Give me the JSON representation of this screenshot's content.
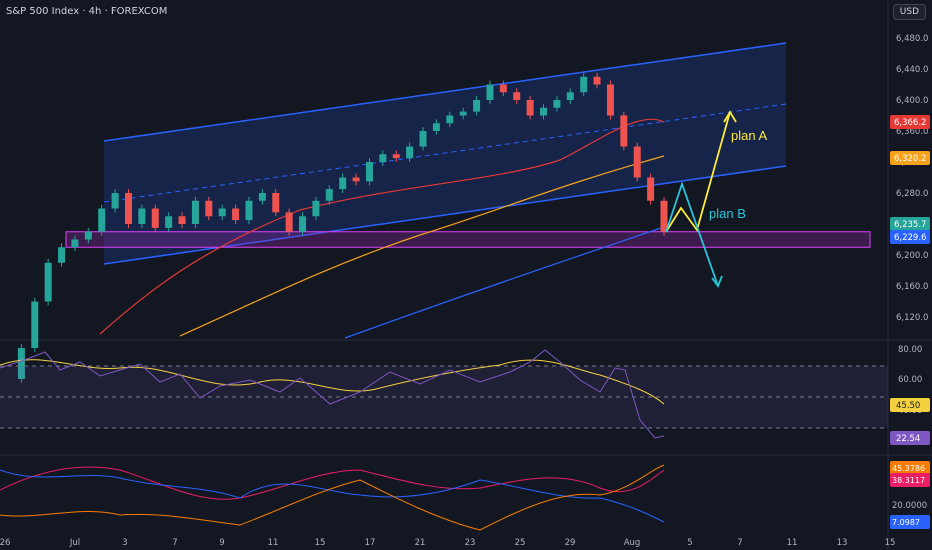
{
  "header": {
    "title": "S&P 500 Index · 4h · FOREXCOM",
    "currency_button": "USD"
  },
  "colors": {
    "background": "#131722",
    "up": "#26a69a",
    "down": "#ef5350",
    "channel": "#2962ff",
    "ma_red": "#e53935",
    "ma_orange": "#f7a21b",
    "ma_blue": "#2962ff",
    "plan_a": "#ffeb3b",
    "plan_b": "#26c6da",
    "rsi": "#7e57c2",
    "rsi_ma": "#f4d03f"
  },
  "chart_data": [
    {
      "type": "candlestick",
      "title": "S&P 500 Index · 4h · FOREXCOM",
      "y_axis_ticks": [
        6120,
        6160,
        6200,
        6240,
        6280,
        6320,
        6360,
        6400,
        6440,
        6480
      ],
      "y_axis_tick_labels": [
        "6,120.0",
        "6,160.0",
        "6,200.0",
        "6,240.0",
        "6,280.0",
        "6,320.0",
        "6,360.0",
        "6,400.0",
        "6,440.0",
        "6,480.0"
      ],
      "x_axis_tick_labels": [
        "26",
        "Jul",
        "3",
        "7",
        "9",
        "11",
        "15",
        "17",
        "21",
        "23",
        "25",
        "29",
        "Aug",
        "5",
        "7",
        "11",
        "13",
        "15"
      ],
      "price_labels": [
        {
          "value": "6,366.2",
          "color": "#e53935"
        },
        {
          "value": "6,320.2",
          "color": "#f7a21b"
        },
        {
          "value": "6,235.7",
          "color": "#26a69a"
        },
        {
          "value": "6,229.6",
          "color": "#2962ff"
        }
      ],
      "annotations": {
        "plan_a": "plan A",
        "plan_b": "plan B"
      },
      "support_zone": [
        6210,
        6230
      ],
      "approx_close_path": [
        6040,
        6080,
        6140,
        6190,
        6210,
        6220,
        6230,
        6260,
        6280,
        6240,
        6260,
        6235,
        6250,
        6240,
        6270,
        6250,
        6260,
        6245,
        6270,
        6280,
        6255,
        6230,
        6250,
        6270,
        6285,
        6300,
        6295,
        6320,
        6330,
        6325,
        6340,
        6360,
        6370,
        6380,
        6385,
        6400,
        6420,
        6410,
        6400,
        6380,
        6390,
        6400,
        6410,
        6430,
        6420,
        6380,
        6340,
        6300,
        6270,
        6230
      ]
    },
    {
      "type": "line",
      "title": "RSI",
      "y_axis_tick_labels": [
        "80.00",
        "60.00",
        "40.00"
      ],
      "levels": [
        70,
        50,
        30
      ],
      "value_labels": [
        {
          "value": "45.50",
          "color": "#f4d03f"
        },
        {
          "value": "22.54",
          "color": "#7e57c2"
        }
      ]
    },
    {
      "type": "line",
      "title": "DMI",
      "y_axis_tick_labels": [
        "20.0000"
      ],
      "value_labels": [
        {
          "value": "45.3786",
          "color": "#f57c00"
        },
        {
          "value": "38.3117",
          "color": "#e91e63"
        },
        {
          "value": "7.0987",
          "color": "#2962ff"
        }
      ]
    }
  ]
}
